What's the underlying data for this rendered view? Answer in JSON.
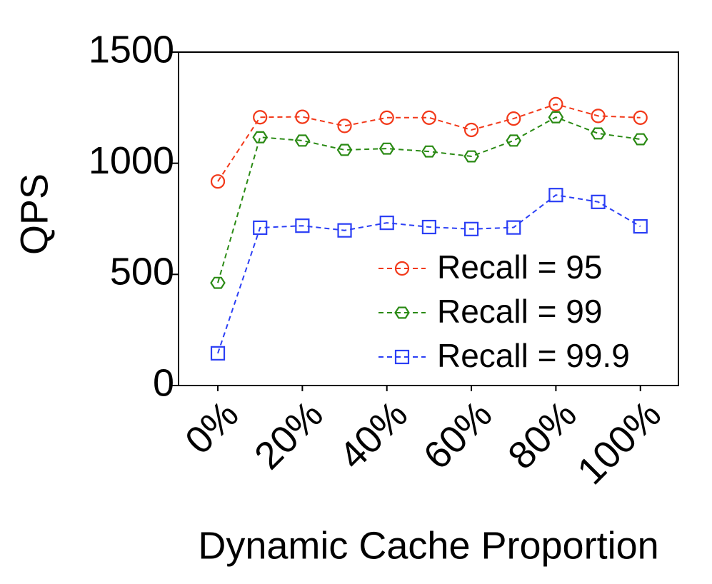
{
  "chart_data": {
    "type": "line",
    "x_label": "Dynamic Cache Proportion",
    "y_label": "QPS",
    "x": [
      0,
      10,
      20,
      30,
      40,
      50,
      60,
      70,
      80,
      90,
      100
    ],
    "series": [
      {
        "name": "Recall = 95",
        "color": "#f2391a",
        "marker": "circle",
        "values": [
          918,
          1207,
          1209,
          1168,
          1205,
          1205,
          1150,
          1201,
          1266,
          1213,
          1205
        ]
      },
      {
        "name": "Recall = 99",
        "color": "#2a8a14",
        "marker": "hexagon",
        "values": [
          462,
          1117,
          1102,
          1060,
          1066,
          1053,
          1031,
          1102,
          1207,
          1134,
          1108
        ]
      },
      {
        "name": "Recall = 99.9",
        "color": "#2b3ff5",
        "marker": "square",
        "values": [
          145,
          710,
          719,
          698,
          732,
          713,
          704,
          711,
          857,
          826,
          716
        ]
      }
    ],
    "xlim": [
      -9.3,
      109
    ],
    "ylim": [
      0,
      1500
    ],
    "xticks": [
      {
        "value": 0,
        "label": "0%"
      },
      {
        "value": 20,
        "label": "20%"
      },
      {
        "value": 40,
        "label": "40%"
      },
      {
        "value": 60,
        "label": "60%"
      },
      {
        "value": 80,
        "label": "80%"
      },
      {
        "value": 100,
        "label": "100%"
      }
    ],
    "yticks": [
      0,
      500,
      1000,
      1500
    ],
    "legend": "lower right"
  }
}
